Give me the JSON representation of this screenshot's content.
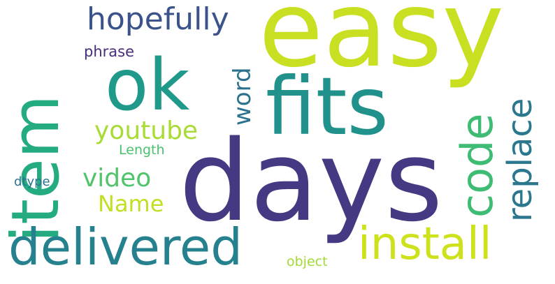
{
  "word_cloud": {
    "words": [
      {
        "key": "easy",
        "text": "easy",
        "orientation": "horizontal",
        "color": "#c8df22"
      },
      {
        "key": "days",
        "text": "days",
        "orientation": "horizontal",
        "color": "#443982"
      },
      {
        "key": "fits",
        "text": "fits",
        "orientation": "horizontal",
        "color": "#21918c"
      },
      {
        "key": "ok",
        "text": "ok",
        "orientation": "horizontal",
        "color": "#1f998a"
      },
      {
        "key": "item",
        "text": "item",
        "orientation": "vertical",
        "color": "#25ab82"
      },
      {
        "key": "delivered",
        "text": "delivered",
        "orientation": "horizontal",
        "color": "#26818e"
      },
      {
        "key": "install",
        "text": "install",
        "orientation": "horizontal",
        "color": "#cde11d"
      },
      {
        "key": "code",
        "text": "code",
        "orientation": "vertical",
        "color": "#3fbc73"
      },
      {
        "key": "replace",
        "text": "replace",
        "orientation": "vertical",
        "color": "#2a778e"
      },
      {
        "key": "hopefully",
        "text": "hopefully",
        "orientation": "horizontal",
        "color": "#3a538b"
      },
      {
        "key": "youtube",
        "text": "youtube",
        "orientation": "horizontal",
        "color": "#a8db34"
      },
      {
        "key": "word",
        "text": "word",
        "orientation": "vertical",
        "color": "#2c728e"
      },
      {
        "key": "video",
        "text": "video",
        "orientation": "horizontal",
        "color": "#50c46a"
      },
      {
        "key": "name",
        "text": "Name",
        "orientation": "horizontal",
        "color": "#c2df23"
      },
      {
        "key": "phrase",
        "text": "phrase",
        "orientation": "horizontal",
        "color": "#472d7b"
      },
      {
        "key": "length",
        "text": "Length",
        "orientation": "horizontal",
        "color": "#4ac16d"
      },
      {
        "key": "dtype",
        "text": "dtype",
        "orientation": "horizontal",
        "color": "#2c728e"
      },
      {
        "key": "object",
        "text": "object",
        "orientation": "horizontal",
        "color": "#a2da37"
      }
    ]
  }
}
